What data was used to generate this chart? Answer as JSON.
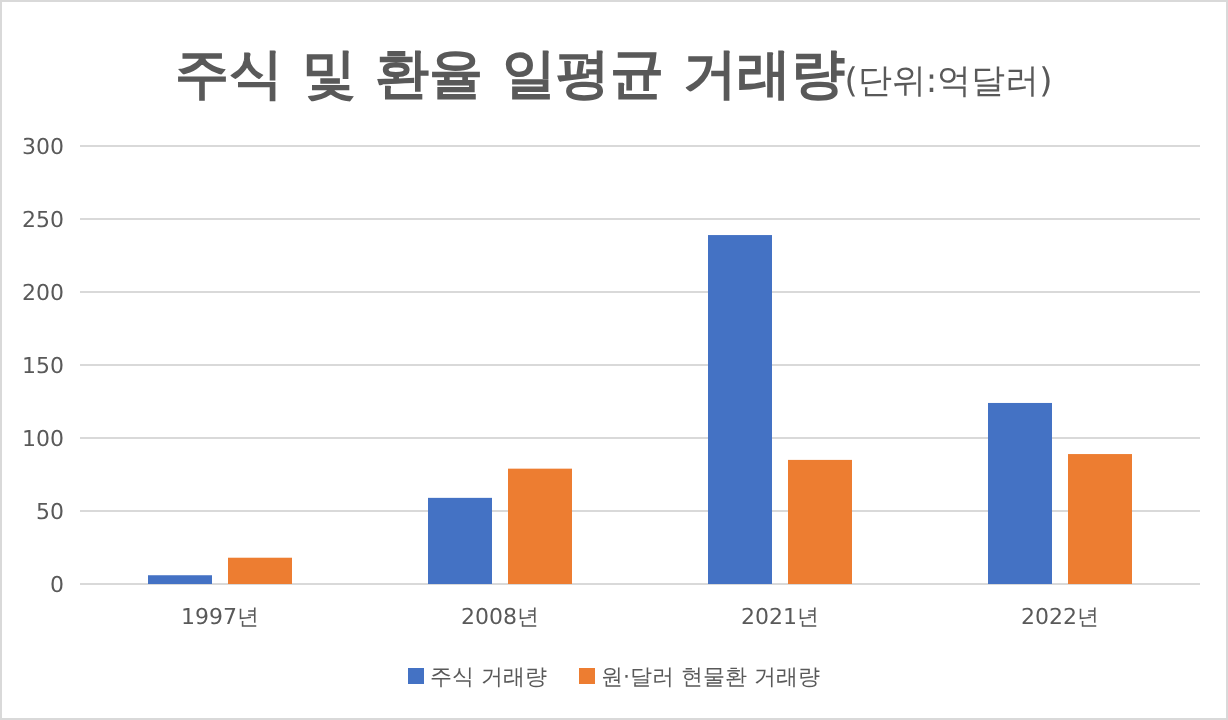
{
  "chart_data": {
    "type": "bar",
    "title": "주식 및 환율 일평균 거래량",
    "subtitle": "(단위:억달러)",
    "categories": [
      "1997년",
      "2008년",
      "2021년",
      "2022년"
    ],
    "series": [
      {
        "name": "주식 거래량",
        "color": "#4472c4",
        "values": [
          6,
          59,
          239,
          124
        ]
      },
      {
        "name": "원·달러 현물환 거래량",
        "color": "#ed7d31",
        "values": [
          18,
          79,
          85,
          89
        ]
      }
    ],
    "ylim": [
      0,
      300
    ],
    "yticks": [
      0,
      50,
      100,
      150,
      200,
      250,
      300
    ],
    "grid": "y",
    "legend": "bottom"
  }
}
